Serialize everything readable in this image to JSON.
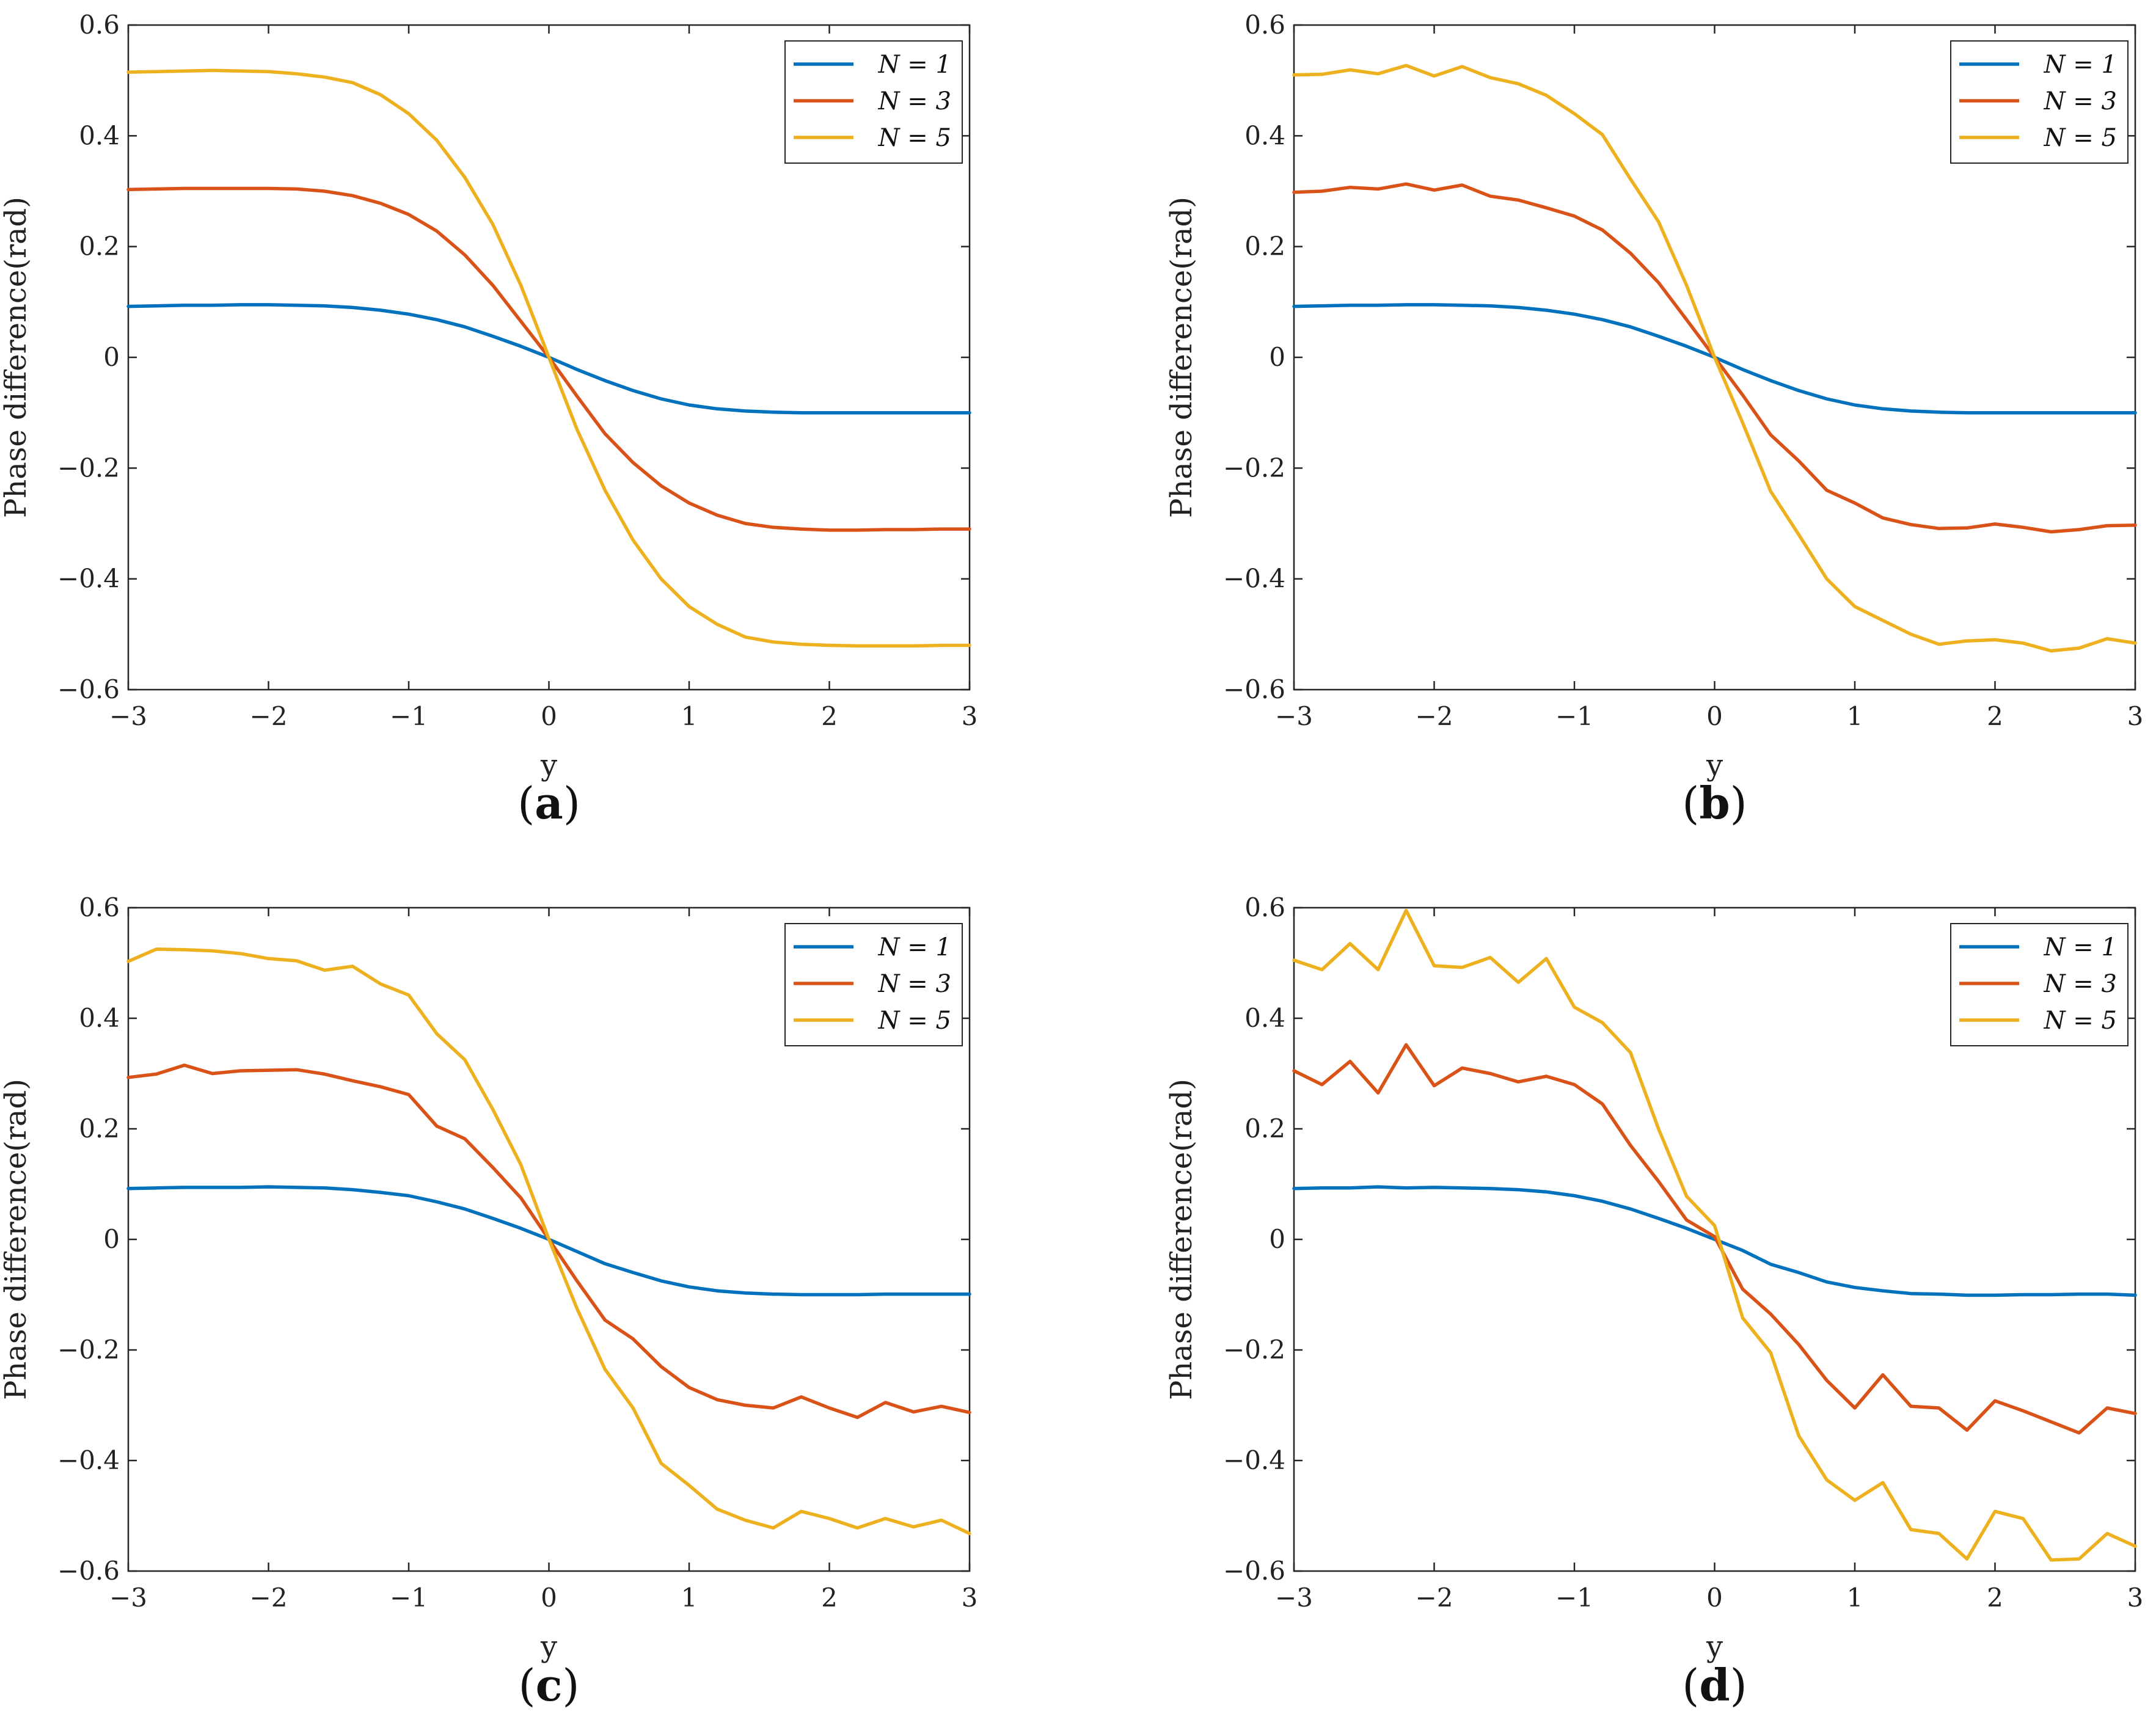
{
  "chart_data": [
    {
      "type": "line",
      "panel": "a",
      "xlabel": "y",
      "ylabel": "Phase difference(rad)",
      "xlim": [
        -3,
        3
      ],
      "ylim": [
        -0.6,
        0.6
      ],
      "xticks": [
        "−3",
        "−2",
        "−1",
        "0",
        "1",
        "2",
        "3"
      ],
      "yticks": [
        "0.6",
        "0.4",
        "0.2",
        "0",
        "−0.2",
        "−0.4",
        "−0.6"
      ],
      "legend": "top-right",
      "x": [
        -3.0,
        -2.8,
        -2.6,
        -2.4,
        -2.2,
        -2.0,
        -1.8,
        -1.6,
        -1.4,
        -1.2,
        -1.0,
        -0.8,
        -0.6,
        -0.4,
        -0.2,
        0.0,
        0.2,
        0.4,
        0.6,
        0.8,
        1.0,
        1.2,
        1.4,
        1.6,
        1.8,
        2.0,
        2.2,
        2.4,
        2.6,
        2.8,
        3.0
      ],
      "series": [
        {
          "name": "N = 1",
          "color": "#0072BD",
          "values": [
            0.092,
            0.093,
            0.094,
            0.094,
            0.095,
            0.095,
            0.094,
            0.093,
            0.09,
            0.085,
            0.078,
            0.068,
            0.055,
            0.038,
            0.02,
            0.0,
            -0.022,
            -0.042,
            -0.06,
            -0.075,
            -0.086,
            -0.093,
            -0.097,
            -0.099,
            -0.1,
            -0.1,
            -0.1,
            -0.1,
            -0.1,
            -0.1,
            -0.1
          ]
        },
        {
          "name": "N = 3",
          "color": "#D95319",
          "values": [
            0.303,
            0.304,
            0.305,
            0.305,
            0.305,
            0.305,
            0.304,
            0.3,
            0.292,
            0.278,
            0.258,
            0.228,
            0.185,
            0.13,
            0.065,
            0.0,
            -0.07,
            -0.138,
            -0.19,
            -0.232,
            -0.263,
            -0.285,
            -0.3,
            -0.307,
            -0.31,
            -0.312,
            -0.312,
            -0.311,
            -0.311,
            -0.31,
            -0.31
          ]
        },
        {
          "name": "N = 5",
          "color": "#EDB120",
          "values": [
            0.515,
            0.516,
            0.517,
            0.518,
            0.517,
            0.516,
            0.512,
            0.506,
            0.496,
            0.474,
            0.44,
            0.392,
            0.325,
            0.24,
            0.13,
            0.0,
            -0.13,
            -0.24,
            -0.33,
            -0.4,
            -0.45,
            -0.482,
            -0.505,
            -0.514,
            -0.518,
            -0.52,
            -0.521,
            -0.521,
            -0.521,
            -0.52,
            -0.52
          ]
        }
      ]
    },
    {
      "type": "line",
      "panel": "b",
      "xlabel": "y",
      "ylabel": "Phase difference(rad)",
      "xlim": [
        -3,
        3
      ],
      "ylim": [
        -0.6,
        0.6
      ],
      "xticks": [
        "−3",
        "−2",
        "−1",
        "0",
        "1",
        "2",
        "3"
      ],
      "yticks": [
        "0.6",
        "0.4",
        "0.2",
        "0",
        "−0.2",
        "−0.4",
        "−0.6"
      ],
      "legend": "top-right",
      "x": [
        -3.0,
        -2.8,
        -2.6,
        -2.4,
        -2.2,
        -2.0,
        -1.8,
        -1.6,
        -1.4,
        -1.2,
        -1.0,
        -0.8,
        -0.6,
        -0.4,
        -0.2,
        0.0,
        0.2,
        0.4,
        0.6,
        0.8,
        1.0,
        1.2,
        1.4,
        1.6,
        1.8,
        2.0,
        2.2,
        2.4,
        2.6,
        2.8,
        3.0
      ],
      "series": [
        {
          "name": "N = 1",
          "color": "#0072BD",
          "values": [
            0.092,
            0.093,
            0.094,
            0.094,
            0.095,
            0.095,
            0.094,
            0.093,
            0.09,
            0.085,
            0.078,
            0.068,
            0.055,
            0.038,
            0.02,
            0.0,
            -0.022,
            -0.042,
            -0.06,
            -0.075,
            -0.086,
            -0.093,
            -0.097,
            -0.099,
            -0.1,
            -0.1,
            -0.1,
            -0.1,
            -0.1,
            -0.1,
            -0.1
          ]
        },
        {
          "name": "N = 3",
          "color": "#D95319",
          "values": [
            0.298,
            0.3,
            0.307,
            0.304,
            0.313,
            0.302,
            0.311,
            0.291,
            0.284,
            0.27,
            0.255,
            0.23,
            0.188,
            0.135,
            0.068,
            0.0,
            -0.068,
            -0.14,
            -0.187,
            -0.24,
            -0.263,
            -0.29,
            -0.302,
            -0.309,
            -0.308,
            -0.301,
            -0.307,
            -0.315,
            -0.311,
            -0.304,
            -0.303
          ]
        },
        {
          "name": "N = 5",
          "color": "#EDB120",
          "values": [
            0.51,
            0.511,
            0.519,
            0.512,
            0.527,
            0.508,
            0.525,
            0.505,
            0.494,
            0.473,
            0.44,
            0.402,
            0.322,
            0.245,
            0.13,
            0.0,
            -0.118,
            -0.242,
            -0.32,
            -0.4,
            -0.45,
            -0.475,
            -0.5,
            -0.518,
            -0.512,
            -0.51,
            -0.516,
            -0.53,
            -0.525,
            -0.508,
            -0.516
          ]
        }
      ]
    },
    {
      "type": "line",
      "panel": "c",
      "xlabel": "y",
      "ylabel": "Phase difference(rad)",
      "xlim": [
        -3,
        3
      ],
      "ylim": [
        -0.6,
        0.6
      ],
      "xticks": [
        "−3",
        "−2",
        "−1",
        "0",
        "1",
        "2",
        "3"
      ],
      "yticks": [
        "0.6",
        "0.4",
        "0.2",
        "0",
        "−0.2",
        "−0.4",
        "−0.6"
      ],
      "legend": "top-right",
      "x": [
        -3.0,
        -2.8,
        -2.6,
        -2.4,
        -2.2,
        -2.0,
        -1.8,
        -1.6,
        -1.4,
        -1.2,
        -1.0,
        -0.8,
        -0.6,
        -0.4,
        -0.2,
        0.0,
        0.2,
        0.4,
        0.6,
        0.8,
        1.0,
        1.2,
        1.4,
        1.6,
        1.8,
        2.0,
        2.2,
        2.4,
        2.6,
        2.8,
        3.0
      ],
      "series": [
        {
          "name": "N = 1",
          "color": "#0072BD",
          "values": [
            0.092,
            0.093,
            0.094,
            0.094,
            0.094,
            0.095,
            0.094,
            0.093,
            0.09,
            0.085,
            0.079,
            0.068,
            0.055,
            0.038,
            0.02,
            0.0,
            -0.022,
            -0.044,
            -0.06,
            -0.075,
            -0.086,
            -0.093,
            -0.097,
            -0.099,
            -0.1,
            -0.1,
            -0.1,
            -0.099,
            -0.099,
            -0.099,
            -0.099
          ]
        },
        {
          "name": "N = 3",
          "color": "#D95319",
          "values": [
            0.293,
            0.299,
            0.315,
            0.3,
            0.305,
            0.306,
            0.307,
            0.299,
            0.287,
            0.276,
            0.262,
            0.205,
            0.182,
            0.13,
            0.075,
            0.0,
            -0.075,
            -0.146,
            -0.18,
            -0.23,
            -0.268,
            -0.29,
            -0.3,
            -0.305,
            -0.285,
            -0.305,
            -0.322,
            -0.295,
            -0.312,
            -0.302,
            -0.313
          ]
        },
        {
          "name": "N = 5",
          "color": "#EDB120",
          "values": [
            0.503,
            0.525,
            0.524,
            0.522,
            0.517,
            0.508,
            0.504,
            0.487,
            0.494,
            0.462,
            0.442,
            0.372,
            0.325,
            0.235,
            0.135,
            0.0,
            -0.125,
            -0.235,
            -0.305,
            -0.405,
            -0.445,
            -0.488,
            -0.508,
            -0.522,
            -0.492,
            -0.505,
            -0.522,
            -0.505,
            -0.52,
            -0.508,
            -0.532
          ]
        }
      ]
    },
    {
      "type": "line",
      "panel": "d",
      "xlabel": "y",
      "ylabel": "Phase difference(rad)",
      "xlim": [
        -3,
        3
      ],
      "ylim": [
        -0.6,
        0.6
      ],
      "xticks": [
        "−3",
        "−2",
        "−1",
        "0",
        "1",
        "2",
        "3"
      ],
      "yticks": [
        "0.6",
        "0.4",
        "0.2",
        "0",
        "−0.2",
        "−0.4",
        "−0.6"
      ],
      "legend": "top-right",
      "x": [
        -3.0,
        -2.8,
        -2.6,
        -2.4,
        -2.2,
        -2.0,
        -1.8,
        -1.6,
        -1.4,
        -1.2,
        -1.0,
        -0.8,
        -0.6,
        -0.4,
        -0.2,
        0.0,
        0.2,
        0.4,
        0.6,
        0.8,
        1.0,
        1.2,
        1.4,
        1.6,
        1.8,
        2.0,
        2.2,
        2.4,
        2.6,
        2.8,
        3.0
      ],
      "series": [
        {
          "name": "N = 1",
          "color": "#0072BD",
          "values": [
            0.092,
            0.093,
            0.093,
            0.095,
            0.093,
            0.094,
            0.093,
            0.092,
            0.09,
            0.086,
            0.079,
            0.069,
            0.055,
            0.038,
            0.02,
            0.0,
            -0.02,
            -0.045,
            -0.06,
            -0.077,
            -0.087,
            -0.093,
            -0.098,
            -0.099,
            -0.101,
            -0.101,
            -0.1,
            -0.1,
            -0.099,
            -0.099,
            -0.101
          ]
        },
        {
          "name": "N = 3",
          "color": "#D95319",
          "values": [
            0.305,
            0.28,
            0.322,
            0.265,
            0.352,
            0.278,
            0.31,
            0.3,
            0.285,
            0.295,
            0.28,
            0.245,
            0.17,
            0.105,
            0.035,
            0.005,
            -0.09,
            -0.135,
            -0.19,
            -0.255,
            -0.305,
            -0.245,
            -0.302,
            -0.305,
            -0.345,
            -0.292,
            -0.31,
            -0.33,
            -0.35,
            -0.305,
            -0.315
          ]
        },
        {
          "name": "N = 5",
          "color": "#EDB120",
          "values": [
            0.505,
            0.488,
            0.535,
            0.488,
            0.595,
            0.495,
            0.492,
            0.51,
            0.465,
            0.508,
            0.42,
            0.392,
            0.338,
            0.2,
            0.078,
            0.025,
            -0.142,
            -0.205,
            -0.355,
            -0.435,
            -0.472,
            -0.44,
            -0.525,
            -0.532,
            -0.578,
            -0.492,
            -0.505,
            -0.58,
            -0.578,
            -0.532,
            -0.555
          ]
        }
      ]
    }
  ],
  "panels": [
    {
      "label_open": "(",
      "label_letter": "a",
      "label_close": ")"
    },
    {
      "label_open": "(",
      "label_letter": "b",
      "label_close": ")"
    },
    {
      "label_open": "(",
      "label_letter": "c",
      "label_close": ")"
    },
    {
      "label_open": "(",
      "label_letter": "d",
      "label_close": ")"
    }
  ]
}
